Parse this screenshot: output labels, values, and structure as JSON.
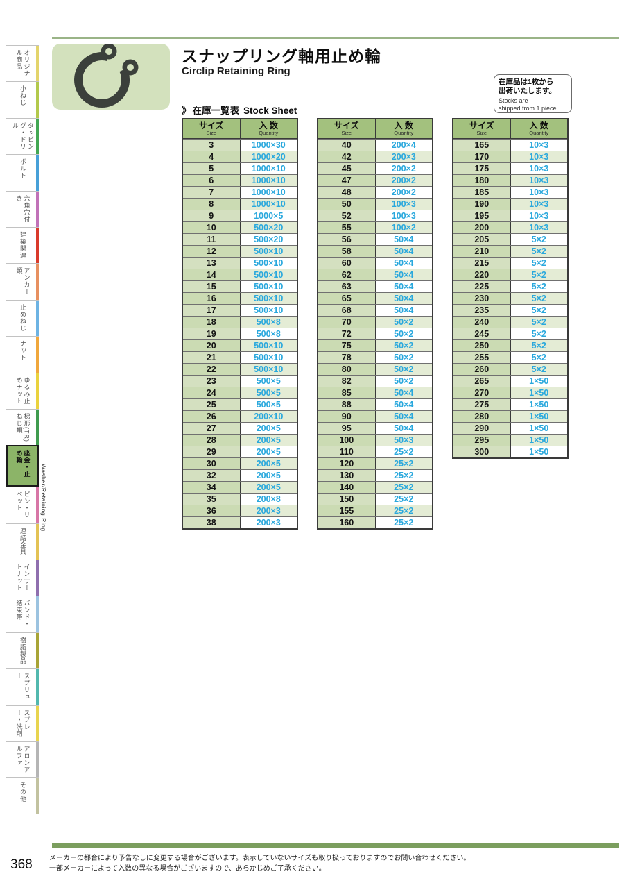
{
  "page": {
    "number": "368"
  },
  "sidebar": {
    "english_label": "Washer/Retaining Ring",
    "items": [
      {
        "label": "オリジナル商品",
        "color": "#e3d46c",
        "active": false
      },
      {
        "label": "小ねじ",
        "color": "#b3c94c",
        "active": false
      },
      {
        "label": "タッピング・ドリル",
        "color": "#43a753",
        "active": false
      },
      {
        "label": "ボルト",
        "color": "#47a0d8",
        "active": false
      },
      {
        "label": "六角穴付き",
        "color": "#c172b8",
        "active": false
      },
      {
        "label": "建築関連",
        "color": "#d93a2b",
        "active": false
      },
      {
        "label": "アンカー類",
        "color": "#e79060",
        "active": false
      },
      {
        "label": "止めねじ",
        "color": "#6db3e3",
        "active": false
      },
      {
        "label": "ナット",
        "color": "#f0a73c",
        "active": false
      },
      {
        "label": "ゆるみ止めナット",
        "color": "#ead23e",
        "active": false
      },
      {
        "label": "梯形(TR)ねじ類",
        "color": "#3f9b4e",
        "active": false
      },
      {
        "label": "座金・止め輪",
        "color": "#8cb468",
        "active": true
      },
      {
        "label": "ピン・リベット",
        "color": "#d776a6",
        "active": false
      },
      {
        "label": "連結金具",
        "color": "#e3c255",
        "active": false
      },
      {
        "label": "インサートナット",
        "color": "#8f6fae",
        "active": false
      },
      {
        "label": "バンド・結束帯",
        "color": "#9cc3e0",
        "active": false
      },
      {
        "label": "樹脂製品",
        "color": "#a8a437",
        "active": false
      },
      {
        "label": "スプリュー",
        "color": "#52b8ae",
        "active": false
      },
      {
        "label": "スプレー・洗剤",
        "color": "#e8d44f",
        "active": false
      },
      {
        "label": "アロンアルファ",
        "color": "#b5b5b5",
        "active": false
      },
      {
        "label": "その他",
        "color": "#c2c2a0",
        "active": false
      }
    ]
  },
  "header": {
    "title_jp": "スナップリング軸用止め輪",
    "title_en": "Circlip Retaining Ring",
    "icon": "circlip-icon"
  },
  "note": {
    "jp_line1": "在庫品は1枚から",
    "jp_line2": "出荷いたします。",
    "en_line1": "Stocks are",
    "en_line2": "shipped from 1 piece."
  },
  "section": {
    "marker": "》",
    "title_jp": "在庫一覧表",
    "title_en": "Stock Sheet"
  },
  "stock_tables": {
    "col_size_jp": "サイズ",
    "col_size_en": "Size",
    "col_qty_jp": "入 数",
    "col_qty_en": "Quantity",
    "qty_text_color": "#29a8dd",
    "tables": [
      {
        "rows": [
          {
            "size": "3",
            "qty": "1000×30"
          },
          {
            "size": "4",
            "qty": "1000×20"
          },
          {
            "size": "5",
            "qty": "1000×10"
          },
          {
            "size": "6",
            "qty": "1000×10"
          },
          {
            "size": "7",
            "qty": "1000×10"
          },
          {
            "size": "8",
            "qty": "1000×10"
          },
          {
            "size": "9",
            "qty": "1000×5"
          },
          {
            "size": "10",
            "qty": "500×20"
          },
          {
            "size": "11",
            "qty": "500×20"
          },
          {
            "size": "12",
            "qty": "500×10"
          },
          {
            "size": "13",
            "qty": "500×10"
          },
          {
            "size": "14",
            "qty": "500×10"
          },
          {
            "size": "15",
            "qty": "500×10"
          },
          {
            "size": "16",
            "qty": "500×10"
          },
          {
            "size": "17",
            "qty": "500×10"
          },
          {
            "size": "18",
            "qty": "500×8"
          },
          {
            "size": "19",
            "qty": "500×8"
          },
          {
            "size": "20",
            "qty": "500×10"
          },
          {
            "size": "21",
            "qty": "500×10"
          },
          {
            "size": "22",
            "qty": "500×10"
          },
          {
            "size": "23",
            "qty": "500×5"
          },
          {
            "size": "24",
            "qty": "500×5"
          },
          {
            "size": "25",
            "qty": "500×5"
          },
          {
            "size": "26",
            "qty": "200×10"
          },
          {
            "size": "27",
            "qty": "200×5"
          },
          {
            "size": "28",
            "qty": "200×5"
          },
          {
            "size": "29",
            "qty": "200×5"
          },
          {
            "size": "30",
            "qty": "200×5"
          },
          {
            "size": "32",
            "qty": "200×5"
          },
          {
            "size": "34",
            "qty": "200×5"
          },
          {
            "size": "35",
            "qty": "200×8"
          },
          {
            "size": "36",
            "qty": "200×3"
          },
          {
            "size": "38",
            "qty": "200×3"
          }
        ]
      },
      {
        "rows": [
          {
            "size": "40",
            "qty": "200×4"
          },
          {
            "size": "42",
            "qty": "200×3"
          },
          {
            "size": "45",
            "qty": "200×2"
          },
          {
            "size": "47",
            "qty": "200×2"
          },
          {
            "size": "48",
            "qty": "200×2"
          },
          {
            "size": "50",
            "qty": "100×3"
          },
          {
            "size": "52",
            "qty": "100×3"
          },
          {
            "size": "55",
            "qty": "100×2"
          },
          {
            "size": "56",
            "qty": "50×4"
          },
          {
            "size": "58",
            "qty": "50×4"
          },
          {
            "size": "60",
            "qty": "50×4"
          },
          {
            "size": "62",
            "qty": "50×4"
          },
          {
            "size": "63",
            "qty": "50×4"
          },
          {
            "size": "65",
            "qty": "50×4"
          },
          {
            "size": "68",
            "qty": "50×4"
          },
          {
            "size": "70",
            "qty": "50×2"
          },
          {
            "size": "72",
            "qty": "50×2"
          },
          {
            "size": "75",
            "qty": "50×2"
          },
          {
            "size": "78",
            "qty": "50×2"
          },
          {
            "size": "80",
            "qty": "50×2"
          },
          {
            "size": "82",
            "qty": "50×2"
          },
          {
            "size": "85",
            "qty": "50×4"
          },
          {
            "size": "88",
            "qty": "50×4"
          },
          {
            "size": "90",
            "qty": "50×4"
          },
          {
            "size": "95",
            "qty": "50×4"
          },
          {
            "size": "100",
            "qty": "50×3"
          },
          {
            "size": "110",
            "qty": "25×2"
          },
          {
            "size": "120",
            "qty": "25×2"
          },
          {
            "size": "130",
            "qty": "25×2"
          },
          {
            "size": "140",
            "qty": "25×2"
          },
          {
            "size": "150",
            "qty": "25×2"
          },
          {
            "size": "155",
            "qty": "25×2"
          },
          {
            "size": "160",
            "qty": "25×2"
          }
        ]
      },
      {
        "rows": [
          {
            "size": "165",
            "qty": "10×3"
          },
          {
            "size": "170",
            "qty": "10×3"
          },
          {
            "size": "175",
            "qty": "10×3"
          },
          {
            "size": "180",
            "qty": "10×3"
          },
          {
            "size": "185",
            "qty": "10×3"
          },
          {
            "size": "190",
            "qty": "10×3"
          },
          {
            "size": "195",
            "qty": "10×3"
          },
          {
            "size": "200",
            "qty": "10×3"
          },
          {
            "size": "205",
            "qty": "5×2"
          },
          {
            "size": "210",
            "qty": "5×2"
          },
          {
            "size": "215",
            "qty": "5×2"
          },
          {
            "size": "220",
            "qty": "5×2"
          },
          {
            "size": "225",
            "qty": "5×2"
          },
          {
            "size": "230",
            "qty": "5×2"
          },
          {
            "size": "235",
            "qty": "5×2"
          },
          {
            "size": "240",
            "qty": "5×2"
          },
          {
            "size": "245",
            "qty": "5×2"
          },
          {
            "size": "250",
            "qty": "5×2"
          },
          {
            "size": "255",
            "qty": "5×2"
          },
          {
            "size": "260",
            "qty": "5×2"
          },
          {
            "size": "265",
            "qty": "1×50"
          },
          {
            "size": "270",
            "qty": "1×50"
          },
          {
            "size": "275",
            "qty": "1×50"
          },
          {
            "size": "280",
            "qty": "1×50"
          },
          {
            "size": "290",
            "qty": "1×50"
          },
          {
            "size": "295",
            "qty": "1×50"
          },
          {
            "size": "300",
            "qty": "1×50"
          }
        ]
      }
    ]
  },
  "footer": {
    "line1": "メーカーの都合により予告なしに変更する場合がございます。表示していないサイズも取り扱っておりますのでお問い合わせください。",
    "line2": "一部メーカーによって入数の異なる場合がございますので、あらかじめご了承ください。"
  },
  "colors": {
    "accent_green_bar": "#7b9e5e",
    "top_rule": "#9ab487",
    "table_header_bg": "#a3c17e",
    "size_cell_bg": "#cbdbb3",
    "qty_alt_bg": "#e4ecd5",
    "icon_box_bg": "#d3e1bd",
    "active_sidebar_bg": "#8cb468"
  }
}
